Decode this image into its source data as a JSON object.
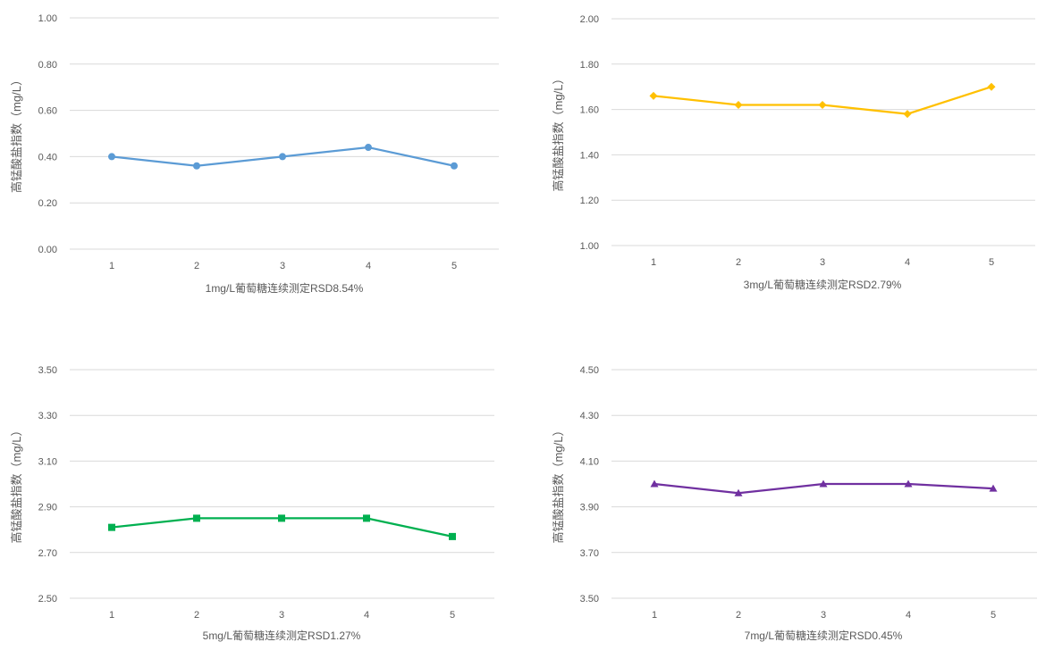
{
  "chart_data": [
    {
      "type": "line",
      "categories": [
        "1",
        "2",
        "3",
        "4",
        "5"
      ],
      "series": [
        {
          "values": [
            0.4,
            0.36,
            0.4,
            0.44,
            0.36
          ]
        }
      ],
      "yticks": [
        "0.00",
        "0.20",
        "0.40",
        "0.60",
        "0.80",
        "1.00"
      ],
      "ylim": [
        0,
        1
      ],
      "ylabel": "高锰酸盐指数（mg/L）",
      "xlabel": "1mg/L葡萄糖连续测定RSD8.54%",
      "color": "#5B9BD5",
      "marker": "circle",
      "grid": true
    },
    {
      "type": "line",
      "categories": [
        "1",
        "2",
        "3",
        "4",
        "5"
      ],
      "series": [
        {
          "values": [
            1.66,
            1.62,
            1.62,
            1.58,
            1.7
          ]
        }
      ],
      "yticks": [
        "1.00",
        "1.20",
        "1.40",
        "1.60",
        "1.80",
        "2.00"
      ],
      "ylim": [
        1,
        2
      ],
      "ylabel": "高锰酸盐指数（mg/L）",
      "xlabel": "3mg/L葡萄糖连续测定RSD2.79%",
      "color": "#FFC000",
      "marker": "diamond",
      "grid": true
    },
    {
      "type": "line",
      "categories": [
        "1",
        "2",
        "3",
        "4",
        "5"
      ],
      "series": [
        {
          "values": [
            2.81,
            2.85,
            2.85,
            2.85,
            2.77
          ]
        }
      ],
      "yticks": [
        "2.50",
        "2.70",
        "2.90",
        "3.10",
        "3.30",
        "3.50"
      ],
      "ylim": [
        2.5,
        3.5
      ],
      "ylabel": "高锰酸盐指数（mg/L）",
      "xlabel": "5mg/L葡萄糖连续测定RSD1.27%",
      "color": "#00B050",
      "marker": "square",
      "grid": true
    },
    {
      "type": "line",
      "categories": [
        "1",
        "2",
        "3",
        "4",
        "5"
      ],
      "series": [
        {
          "values": [
            4.0,
            3.96,
            4.0,
            4.0,
            3.98
          ]
        }
      ],
      "yticks": [
        "3.50",
        "3.70",
        "3.90",
        "4.10",
        "4.30",
        "4.50"
      ],
      "ylim": [
        3.5,
        4.5
      ],
      "ylabel": "高锰酸盐指数（mg/L）",
      "xlabel": "7mg/L葡萄糖连续测定RSD0.45%",
      "color": "#7030A0",
      "marker": "triangle",
      "grid": true
    }
  ]
}
